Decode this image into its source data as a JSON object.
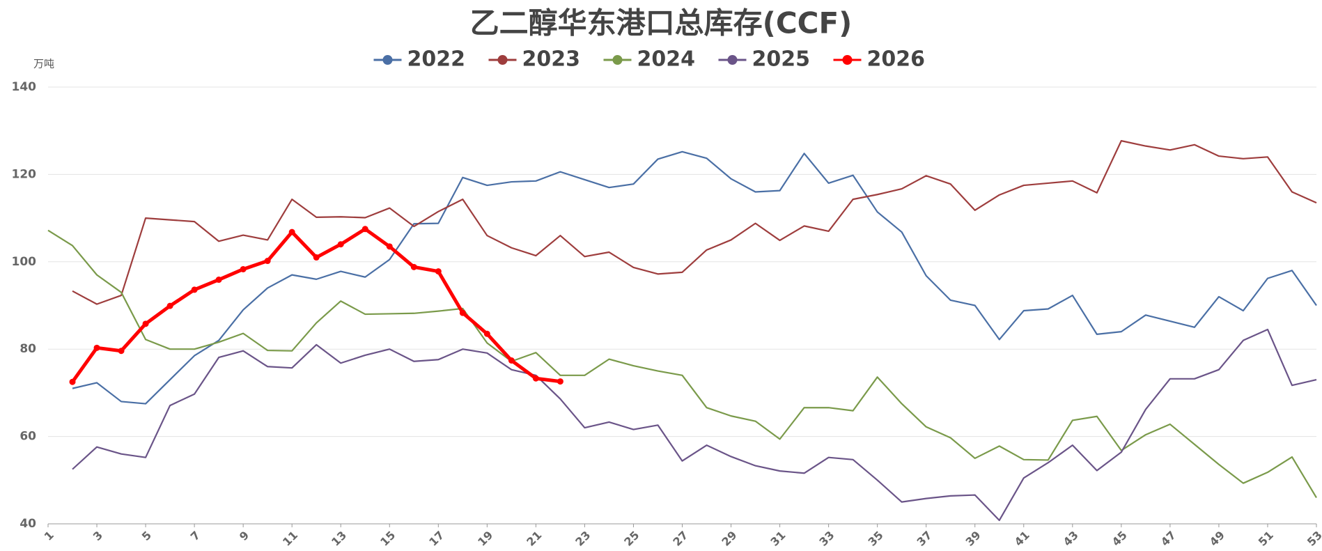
{
  "chart_data": {
    "type": "line",
    "title": "乙二醇华东港口总库存(CCF)",
    "y_label": "万吨",
    "categories": [
      "1",
      null,
      "3",
      null,
      "5",
      null,
      "7",
      null,
      "9",
      null,
      "11",
      null,
      "13",
      null,
      "15",
      null,
      "17",
      null,
      "19",
      null,
      "21",
      null,
      "23",
      null,
      "25",
      null,
      "27",
      null,
      "29",
      null,
      "31",
      null,
      "33",
      null,
      "35",
      null,
      "37",
      null,
      "39",
      null,
      "41",
      null,
      "43",
      null,
      "45",
      null,
      "47",
      null,
      "49",
      null,
      "51",
      null,
      "53"
    ],
    "series": [
      {
        "name": "2022",
        "color": "#4a6fa5",
        "markers": false,
        "values": [
          null,
          71,
          72.3,
          68,
          67.5,
          73,
          78.5,
          82,
          89,
          94,
          97,
          96,
          97.8,
          96.5,
          100.5,
          108.7,
          108.8,
          119.3,
          117.5,
          118.3,
          118.5,
          120.6,
          118.8,
          117,
          117.8,
          123.5,
          125.2,
          123.7,
          119,
          116,
          116.3,
          124.8,
          118,
          119.8,
          111.4,
          106.8,
          96.8,
          91.2,
          90,
          82.2,
          88.8,
          89.2,
          92.3,
          83.4,
          84,
          87.8,
          86.4,
          85,
          92,
          88.8,
          96.2,
          98,
          90
        ]
      },
      {
        "name": "2023",
        "color": "#9e3d3d",
        "markers": false,
        "values": [
          null,
          93.3,
          90.3,
          92.3,
          110,
          109.6,
          109.2,
          104.7,
          106.1,
          105,
          114.3,
          110.2,
          110.3,
          110.1,
          112.3,
          108.1,
          111.5,
          114.3,
          106,
          103.2,
          101.4,
          106,
          101.2,
          102.2,
          98.7,
          97.2,
          97.6,
          102.7,
          105,
          108.8,
          104.9,
          108.2,
          107,
          114.3,
          115.4,
          116.7,
          119.7,
          117.8,
          111.8,
          115.3,
          117.5,
          118,
          118.5,
          115.8,
          127.7,
          126.5,
          125.6,
          126.8,
          124.2,
          123.6,
          124,
          116,
          113.5
        ]
      },
      {
        "name": "2024",
        "color": "#7a9a4a",
        "markers": false,
        "values": [
          107.2,
          103.7,
          97,
          93,
          82.2,
          80,
          80,
          81.6,
          83.6,
          79.7,
          79.6,
          86,
          91,
          88,
          88.1,
          88.2,
          88.7,
          89.3,
          81.4,
          77.2,
          79.2,
          74,
          74,
          77.7,
          76.2,
          75,
          74,
          66.6,
          64.7,
          63.5,
          59.4,
          66.6,
          66.6,
          65.9,
          73.6,
          67.5,
          62.2,
          59.7,
          55,
          57.8,
          54.7,
          54.6,
          63.7,
          64.6,
          56.8,
          60.4,
          62.8,
          58.2,
          53.6,
          49.3,
          51.8,
          55.3,
          46
        ]
      },
      {
        "name": "2025",
        "color": "#6a5488",
        "markers": false,
        "values": [
          null,
          52.5,
          57.6,
          56,
          55.2,
          67.1,
          69.7,
          78.1,
          79.6,
          76,
          75.7,
          81,
          76.8,
          78.6,
          80,
          77.2,
          77.6,
          80,
          79.1,
          75.3,
          74,
          68.6,
          62,
          63.3,
          61.6,
          62.6,
          54.4,
          58,
          55.4,
          53.3,
          52.1,
          51.6,
          55.2,
          54.7,
          50,
          45,
          45.8,
          46.4,
          46.6,
          40.8,
          50.5,
          54,
          58,
          52.2,
          56.4,
          66.2,
          73.2,
          73.2,
          75.3,
          82,
          84.5,
          71.7,
          73
        ]
      },
      {
        "name": "2026",
        "color": "#ff0000",
        "markers": true,
        "values": [
          null,
          72.5,
          80.3,
          79.6,
          85.8,
          89.9,
          93.6,
          95.9,
          98.3,
          100.2,
          106.8,
          101,
          104,
          107.5,
          103.5,
          98.8,
          97.8,
          88.3,
          83.5,
          77.4,
          73.3,
          72.6,
          null,
          null,
          null,
          null,
          null,
          null,
          null,
          null,
          null,
          null,
          null,
          null,
          null,
          null,
          null,
          null,
          null,
          null,
          null,
          null,
          null,
          null,
          null,
          null,
          null,
          null,
          null,
          null,
          null,
          null,
          null
        ]
      }
    ],
    "ylim": [
      40,
      140
    ],
    "yticks": [
      40,
      60,
      80,
      100,
      120,
      140
    ],
    "grid": true,
    "legend": "top"
  }
}
